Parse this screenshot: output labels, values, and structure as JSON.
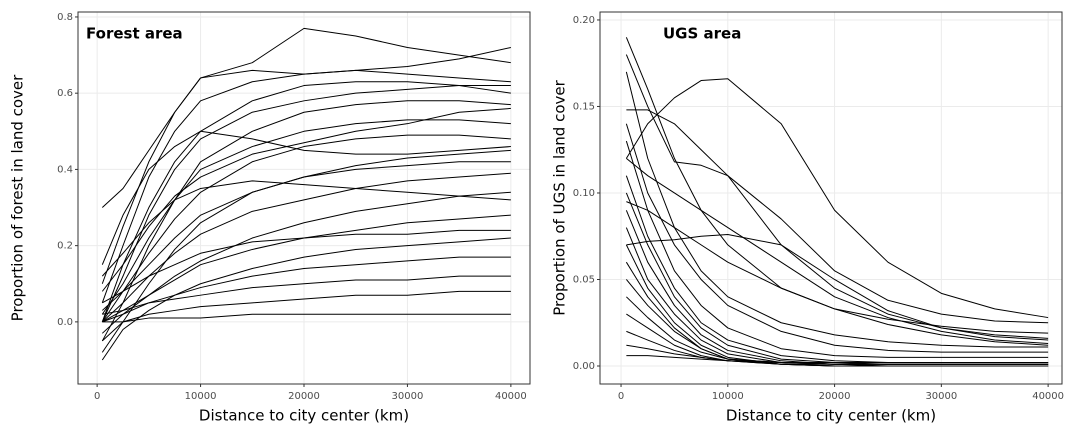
{
  "chart_data": [
    {
      "type": "line",
      "title": "Forest area",
      "xlabel": "Distance to city center (km)",
      "ylabel": "Proportion of forest in land cover",
      "x": [
        500,
        2500,
        5000,
        7500,
        10000,
        15000,
        20000,
        25000,
        30000,
        35000,
        40000
      ],
      "color": "#000000",
      "grid": true,
      "xlim": [
        -1850,
        41850
      ],
      "ylim": [
        -0.163,
        0.813
      ],
      "xticks": [
        0,
        10000,
        20000,
        30000,
        40000
      ],
      "yticks": [
        {
          "value": 0,
          "label": "0.0"
        },
        0.2,
        0.4,
        0.6,
        0.8
      ],
      "series": [
        {
          "values": [
            0.3,
            0.35,
            0.45,
            0.55,
            0.64,
            0.68,
            0.77,
            0.75,
            0.72,
            0.7,
            0.68
          ]
        },
        {
          "values": [
            0.1,
            0.25,
            0.42,
            0.55,
            0.64,
            0.66,
            0.65,
            0.66,
            0.67,
            0.69,
            0.72
          ]
        },
        {
          "values": [
            0.05,
            0.2,
            0.38,
            0.5,
            0.58,
            0.63,
            0.65,
            0.66,
            0.65,
            0.64,
            0.63
          ]
        },
        {
          "values": [
            0.0,
            0.12,
            0.28,
            0.4,
            0.48,
            0.55,
            0.58,
            0.6,
            0.61,
            0.62,
            0.62
          ]
        },
        {
          "values": [
            -0.05,
            0.05,
            0.2,
            0.32,
            0.42,
            0.5,
            0.55,
            0.57,
            0.58,
            0.58,
            0.57
          ]
        },
        {
          "values": [
            0.02,
            0.1,
            0.22,
            0.32,
            0.4,
            0.46,
            0.5,
            0.52,
            0.53,
            0.53,
            0.52
          ]
        },
        {
          "values": [
            0.0,
            0.08,
            0.18,
            0.27,
            0.34,
            0.42,
            0.46,
            0.48,
            0.49,
            0.49,
            0.48
          ]
        },
        {
          "values": [
            0.08,
            0.15,
            0.25,
            0.33,
            0.38,
            0.44,
            0.47,
            0.5,
            0.52,
            0.55,
            0.56
          ]
        },
        {
          "values": [
            -0.08,
            0.0,
            0.1,
            0.19,
            0.26,
            0.34,
            0.38,
            0.41,
            0.43,
            0.44,
            0.45
          ]
        },
        {
          "values": [
            0.03,
            0.08,
            0.15,
            0.22,
            0.28,
            0.34,
            0.38,
            0.4,
            0.41,
            0.42,
            0.42
          ]
        },
        {
          "values": [
            0.0,
            0.05,
            0.12,
            0.18,
            0.23,
            0.29,
            0.32,
            0.35,
            0.37,
            0.38,
            0.39
          ]
        },
        {
          "values": [
            0.12,
            0.18,
            0.26,
            0.32,
            0.35,
            0.37,
            0.36,
            0.35,
            0.34,
            0.33,
            0.32
          ]
        },
        {
          "values": [
            -0.03,
            0.02,
            0.07,
            0.12,
            0.16,
            0.22,
            0.26,
            0.29,
            0.31,
            0.33,
            0.34
          ]
        },
        {
          "values": [
            0.0,
            0.03,
            0.07,
            0.11,
            0.15,
            0.19,
            0.22,
            0.24,
            0.26,
            0.27,
            0.28
          ]
        },
        {
          "values": [
            0.05,
            0.08,
            0.12,
            0.15,
            0.18,
            0.21,
            0.22,
            0.23,
            0.23,
            0.24,
            0.24
          ]
        },
        {
          "values": [
            -0.1,
            -0.02,
            0.03,
            0.07,
            0.1,
            0.14,
            0.17,
            0.19,
            0.2,
            0.21,
            0.22
          ]
        },
        {
          "values": [
            0.0,
            0.02,
            0.05,
            0.07,
            0.09,
            0.12,
            0.14,
            0.15,
            0.16,
            0.17,
            0.17
          ]
        },
        {
          "values": [
            0.02,
            0.03,
            0.05,
            0.06,
            0.07,
            0.09,
            0.1,
            0.11,
            0.11,
            0.12,
            0.12
          ]
        },
        {
          "values": [
            -0.05,
            0.0,
            0.02,
            0.03,
            0.04,
            0.05,
            0.06,
            0.07,
            0.07,
            0.08,
            0.08
          ]
        },
        {
          "values": [
            0.0,
            0.0,
            0.01,
            0.01,
            0.01,
            0.02,
            0.02,
            0.02,
            0.02,
            0.02,
            0.02
          ]
        },
        {
          "values": [
            0.15,
            0.28,
            0.4,
            0.46,
            0.5,
            0.48,
            0.45,
            0.44,
            0.44,
            0.45,
            0.46
          ]
        },
        {
          "values": [
            0.0,
            0.15,
            0.3,
            0.42,
            0.5,
            0.58,
            0.62,
            0.63,
            0.63,
            0.62,
            0.6
          ]
        }
      ]
    },
    {
      "type": "line",
      "title": "UGS area",
      "xlabel": "Distance to city center (km)",
      "ylabel": "Proportion of UGS in land cover",
      "x": [
        500,
        2500,
        5000,
        7500,
        10000,
        15000,
        20000,
        25000,
        30000,
        35000,
        40000
      ],
      "color": "#000000",
      "grid": true,
      "xlim": [
        -1970,
        41300
      ],
      "ylim": [
        -0.0104,
        0.2046
      ],
      "xticks": [
        0,
        10000,
        20000,
        30000,
        40000
      ],
      "yticks": [
        {
          "value": 0,
          "label": "0.00"
        },
        0.05,
        {
          "value": 0.1,
          "label": "0.10"
        },
        0.15,
        {
          "value": 0.2,
          "label": "0.20"
        }
      ],
      "series": [
        {
          "values": [
            0.12,
            0.14,
            0.155,
            0.165,
            0.166,
            0.14,
            0.09,
            0.06,
            0.042,
            0.033,
            0.028
          ]
        },
        {
          "values": [
            0.19,
            0.16,
            0.12,
            0.09,
            0.07,
            0.045,
            0.033,
            0.027,
            0.023,
            0.02,
            0.019
          ]
        },
        {
          "values": [
            0.18,
            0.15,
            0.118,
            0.116,
            0.11,
            0.085,
            0.055,
            0.038,
            0.03,
            0.026,
            0.025
          ]
        },
        {
          "values": [
            0.148,
            0.148,
            0.14,
            0.125,
            0.11,
            0.07,
            0.045,
            0.03,
            0.022,
            0.018,
            0.016
          ]
        },
        {
          "values": [
            0.07,
            0.072,
            0.073,
            0.075,
            0.076,
            0.07,
            0.05,
            0.032,
            0.022,
            0.017,
            0.015
          ]
        },
        {
          "values": [
            0.17,
            0.12,
            0.08,
            0.055,
            0.04,
            0.025,
            0.018,
            0.014,
            0.012,
            0.011,
            0.011
          ]
        },
        {
          "values": [
            0.14,
            0.1,
            0.07,
            0.05,
            0.035,
            0.02,
            0.012,
            0.009,
            0.008,
            0.008,
            0.008
          ]
        },
        {
          "values": [
            0.13,
            0.09,
            0.055,
            0.035,
            0.022,
            0.01,
            0.006,
            0.005,
            0.005,
            0.005,
            0.005
          ]
        },
        {
          "values": [
            0.11,
            0.075,
            0.045,
            0.025,
            0.015,
            0.006,
            0.003,
            0.002,
            0.002,
            0.002,
            0.002
          ]
        },
        {
          "values": [
            0.1,
            0.07,
            0.04,
            0.022,
            0.012,
            0.004,
            0.002,
            0.001,
            0.001,
            0.001,
            0.001
          ]
        },
        {
          "values": [
            0.09,
            0.06,
            0.035,
            0.018,
            0.009,
            0.003,
            0.001,
            0.001,
            0.001,
            0.001,
            0.001
          ]
        },
        {
          "values": [
            0.08,
            0.05,
            0.03,
            0.015,
            0.007,
            0.002,
            0.001,
            0.0,
            0.0,
            0.0,
            0.0
          ]
        },
        {
          "values": [
            0.07,
            0.045,
            0.025,
            0.012,
            0.005,
            0.001,
            0.0,
            0.0,
            0.0,
            0.0,
            0.0
          ]
        },
        {
          "values": [
            0.06,
            0.04,
            0.022,
            0.01,
            0.004,
            0.001,
            0.0,
            0.0,
            0.0,
            0.0,
            0.0
          ]
        },
        {
          "values": [
            0.05,
            0.035,
            0.02,
            0.01,
            0.004,
            0.002,
            0.001,
            0.001,
            0.001,
            0.001,
            0.001
          ]
        },
        {
          "values": [
            0.04,
            0.028,
            0.015,
            0.008,
            0.004,
            0.002,
            0.002,
            0.002,
            0.002,
            0.002,
            0.002
          ]
        },
        {
          "values": [
            0.03,
            0.022,
            0.012,
            0.006,
            0.003,
            0.001,
            0.001,
            0.001,
            0.001,
            0.001,
            0.001
          ]
        },
        {
          "values": [
            0.02,
            0.015,
            0.009,
            0.005,
            0.003,
            0.002,
            0.002,
            0.002,
            0.002,
            0.002,
            0.002
          ]
        },
        {
          "values": [
            0.012,
            0.01,
            0.007,
            0.005,
            0.003,
            0.001,
            0.0,
            0.0,
            0.0,
            0.0,
            0.0
          ]
        },
        {
          "values": [
            0.006,
            0.006,
            0.005,
            0.004,
            0.003,
            0.002,
            0.001,
            0.001,
            0.001,
            0.001,
            0.001
          ]
        },
        {
          "values": [
            0.095,
            0.09,
            0.08,
            0.07,
            0.06,
            0.045,
            0.033,
            0.024,
            0.018,
            0.014,
            0.012
          ]
        },
        {
          "values": [
            0.12,
            0.11,
            0.1,
            0.09,
            0.08,
            0.06,
            0.04,
            0.028,
            0.02,
            0.015,
            0.013
          ]
        }
      ]
    }
  ]
}
